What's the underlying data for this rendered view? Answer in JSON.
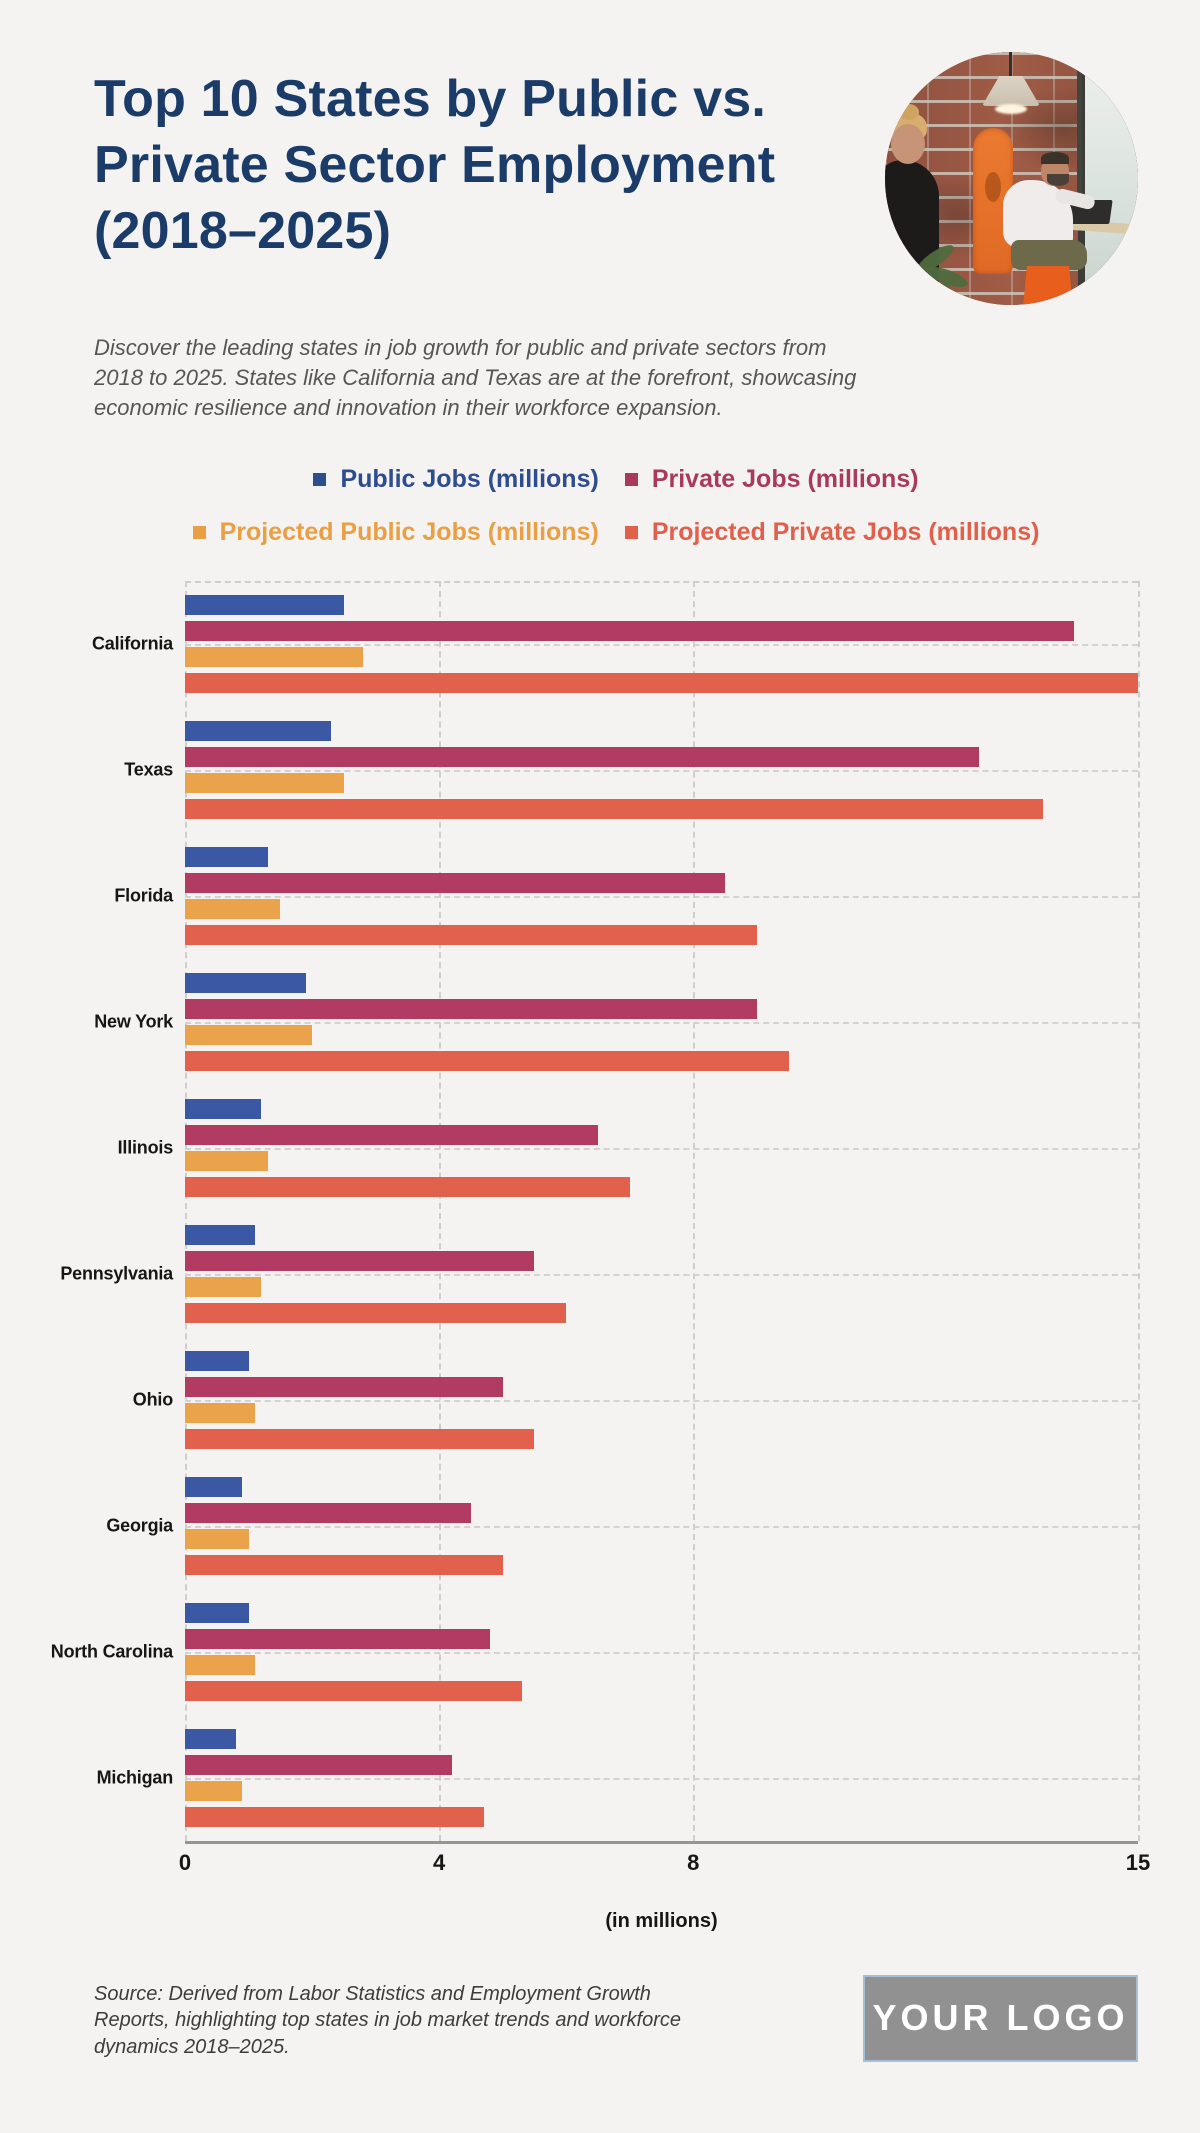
{
  "header": {
    "title": "Top 10 States by Public vs. Private Sector Employment (2018–2025)",
    "description": "Discover the leading states in job growth for public and private sectors from 2018 to 2025. States like California and Texas are at the forefront, showcasing economic resilience and innovation in their workforce expansion."
  },
  "colors": {
    "background": "#f4f3f1",
    "title": "#1b3c68",
    "public_bar": "#3b58a5",
    "private_bar": "#b13b62",
    "projected_public_bar": "#eaa34a",
    "projected_private_bar": "#e2614c",
    "logo_border": "#a5c0d6",
    "logo_fill": "#919191"
  },
  "legend": {
    "rows": [
      [
        {
          "label": "Public Jobs (millions)",
          "color": "#2e4d8f"
        },
        {
          "label": "Private Jobs (millions)",
          "color": "#a93a5e"
        }
      ],
      [
        {
          "label": "Projected Public Jobs (millions)",
          "color": "#e9a045"
        },
        {
          "label": "Projected Private Jobs (millions)",
          "color": "#e0604c"
        }
      ]
    ]
  },
  "chart_data": {
    "type": "bar",
    "orientation": "horizontal",
    "title": "Top 10 States by Public vs. Private Sector Employment (2018–2025)",
    "categories": [
      "California",
      "Texas",
      "Florida",
      "New York",
      "Illinois",
      "Pennsylvania",
      "Ohio",
      "Georgia",
      "North Carolina",
      "Michigan"
    ],
    "series": [
      {
        "name": "Public Jobs (millions)",
        "color": "#3b58a5",
        "values": [
          2.5,
          2.3,
          1.3,
          1.9,
          1.2,
          1.1,
          1.0,
          0.9,
          1.0,
          0.8
        ]
      },
      {
        "name": "Private Jobs (millions)",
        "color": "#b13b62",
        "values": [
          14.0,
          12.5,
          8.5,
          9.0,
          6.5,
          5.5,
          5.0,
          4.5,
          4.8,
          4.2
        ]
      },
      {
        "name": "Projected Public Jobs (millions)",
        "color": "#eaa34a",
        "values": [
          2.8,
          2.5,
          1.5,
          2.0,
          1.3,
          1.2,
          1.1,
          1.0,
          1.1,
          0.9
        ]
      },
      {
        "name": "Projected Private Jobs (millions)",
        "color": "#e2614c",
        "values": [
          15.0,
          13.5,
          9.0,
          9.5,
          7.0,
          6.0,
          5.5,
          5.0,
          5.3,
          4.7
        ]
      }
    ],
    "xlim": [
      0,
      15
    ],
    "ticks": [
      0,
      4,
      8,
      15
    ],
    "xlabel": "(in millions)",
    "grid": "dashed vertical lines at ticks, dashed horizontal line at each category center",
    "legend_position": "top"
  },
  "footer": {
    "source": "Source: Derived from Labor Statistics and Employment Growth Reports, highlighting top states in job market trends and workforce dynamics 2018–2025.",
    "logo_text": "YOUR LOGO"
  }
}
